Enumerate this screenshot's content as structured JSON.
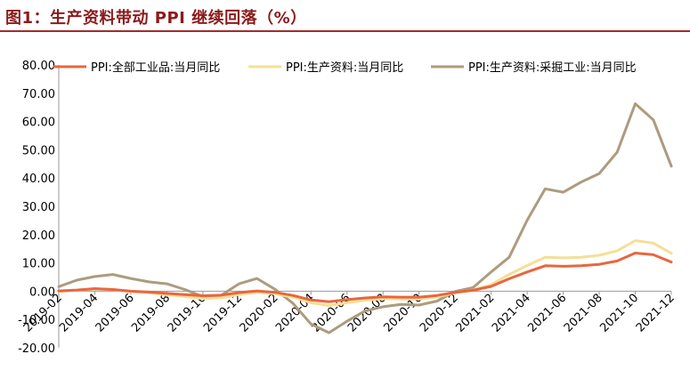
{
  "figure": {
    "title": "图1：生产资料带动 PPI 继续回落（%）"
  },
  "chart_data": {
    "type": "line",
    "title": "图1：生产资料带动 PPI 继续回落（%）",
    "xlabel": "",
    "ylabel": "",
    "ylim": [
      -20,
      80
    ],
    "yticks": [
      "-20.00",
      "-10.00",
      "0.00",
      "10.00",
      "20.00",
      "30.00",
      "40.00",
      "50.00",
      "60.00",
      "70.00",
      "80.00"
    ],
    "x": [
      "2019-02",
      "2019-03",
      "2019-04",
      "2019-05",
      "2019-06",
      "2019-07",
      "2019-08",
      "2019-09",
      "2019-10",
      "2019-11",
      "2019-12",
      "2020-01",
      "2020-02",
      "2020-03",
      "2020-04",
      "2020-05",
      "2020-06",
      "2020-07",
      "2020-08",
      "2020-09",
      "2020-10",
      "2020-11",
      "2020-12",
      "2021-01",
      "2021-02",
      "2021-03",
      "2021-04",
      "2021-05",
      "2021-06",
      "2021-07",
      "2021-08",
      "2021-09",
      "2021-10",
      "2021-11",
      "2021-12"
    ],
    "xtick_labels": [
      "2019-02",
      "2019-04",
      "2019-06",
      "2019-08",
      "2019-10",
      "2019-12",
      "2020-02",
      "2020-04",
      "2020-06",
      "2020-08",
      "2020-10",
      "2020-12",
      "2021-02",
      "2021-04",
      "2021-06",
      "2021-08",
      "2021-10",
      "2021-12"
    ],
    "legend_position": "top",
    "grid": false,
    "series": [
      {
        "name": "PPI:全部工业品:当月同比",
        "color": "#e8663f",
        "values": [
          0.1,
          0.4,
          0.9,
          0.6,
          0.0,
          -0.3,
          -0.8,
          -1.2,
          -1.6,
          -1.4,
          -0.5,
          0.1,
          -0.4,
          -1.5,
          -3.1,
          -3.7,
          -3.0,
          -2.4,
          -2.0,
          -2.1,
          -2.1,
          -1.5,
          -0.4,
          0.3,
          1.7,
          4.4,
          6.8,
          9.0,
          8.8,
          9.0,
          9.5,
          10.7,
          13.5,
          12.9,
          10.3
        ]
      },
      {
        "name": "PPI:生产资料:当月同比",
        "color": "#f5df96",
        "values": [
          -0.1,
          0.3,
          0.8,
          0.6,
          -0.2,
          -0.6,
          -1.3,
          -1.9,
          -2.6,
          -2.4,
          -1.2,
          -0.4,
          -0.9,
          -2.1,
          -4.1,
          -5.1,
          -4.1,
          -3.2,
          -2.6,
          -2.8,
          -2.8,
          -2.0,
          -0.6,
          0.4,
          2.3,
          5.9,
          9.1,
          12.0,
          11.8,
          12.0,
          12.7,
          14.3,
          17.9,
          17.0,
          13.4
        ]
      },
      {
        "name": "PPI:生产资料:采掘工业:当月同比",
        "color": "#ad9b7e",
        "values": [
          1.6,
          3.9,
          5.2,
          5.9,
          4.5,
          3.3,
          2.6,
          0.6,
          -1.9,
          -1.5,
          2.6,
          4.5,
          0.7,
          -4.3,
          -11.6,
          -14.7,
          -10.6,
          -7.0,
          -5.5,
          -4.7,
          -4.9,
          -3.5,
          -0.1,
          1.3,
          6.8,
          12.0,
          25.1,
          36.2,
          35.0,
          38.6,
          41.6,
          49.2,
          66.3,
          60.6,
          44.2
        ]
      }
    ]
  }
}
